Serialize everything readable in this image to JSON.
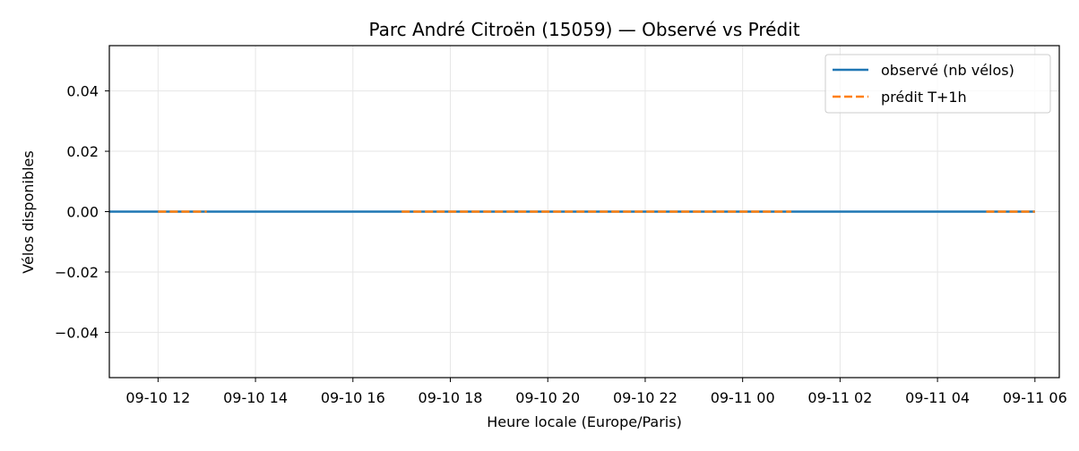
{
  "chart_data": {
    "type": "line",
    "title": "Parc André Citroën (15059) — Observé vs Prédit",
    "xlabel": "Heure locale (Europe/Paris)",
    "ylabel": "Vélos disponibles",
    "x_range": [
      "2024-09-10T11:00",
      "2024-09-11T06:30"
    ],
    "ylim": [
      -0.055,
      0.055
    ],
    "x_ticks": [
      {
        "value": "2024-09-10T12:00",
        "label": "09-10 12"
      },
      {
        "value": "2024-09-10T14:00",
        "label": "09-10 14"
      },
      {
        "value": "2024-09-10T16:00",
        "label": "09-10 16"
      },
      {
        "value": "2024-09-10T18:00",
        "label": "09-10 18"
      },
      {
        "value": "2024-09-10T20:00",
        "label": "09-10 20"
      },
      {
        "value": "2024-09-10T22:00",
        "label": "09-10 22"
      },
      {
        "value": "2024-09-11T00:00",
        "label": "09-11 00"
      },
      {
        "value": "2024-09-11T02:00",
        "label": "09-11 02"
      },
      {
        "value": "2024-09-11T04:00",
        "label": "09-11 04"
      },
      {
        "value": "2024-09-11T06:00",
        "label": "09-11 06"
      }
    ],
    "y_ticks": [
      {
        "value": 0.04,
        "label": "0.04"
      },
      {
        "value": 0.02,
        "label": "0.02"
      },
      {
        "value": 0.0,
        "label": "0.00"
      },
      {
        "value": -0.02,
        "label": "−0.02"
      },
      {
        "value": -0.04,
        "label": "−0.04"
      }
    ],
    "grid": true,
    "legend_position": "top-right",
    "series": [
      {
        "name": "observé (nb vélos)",
        "color": "#1f77b4",
        "style": "solid",
        "segments": [
          [
            {
              "x": "2024-09-10T11:00",
              "y": 0
            },
            {
              "x": "2024-09-11T06:00",
              "y": 0
            }
          ]
        ]
      },
      {
        "name": "prédit T+1h",
        "color": "#ff7f0e",
        "style": "dashed",
        "segments": [
          [
            {
              "x": "2024-09-10T12:00",
              "y": 0
            },
            {
              "x": "2024-09-10T13:00",
              "y": 0
            }
          ],
          [
            {
              "x": "2024-09-10T17:00",
              "y": 0
            },
            {
              "x": "2024-09-11T01:00",
              "y": 0
            }
          ],
          [
            {
              "x": "2024-09-11T05:00",
              "y": 0
            },
            {
              "x": "2024-09-11T06:00",
              "y": 0
            }
          ]
        ]
      }
    ]
  }
}
